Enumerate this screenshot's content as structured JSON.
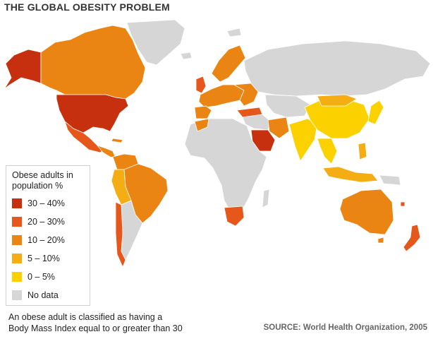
{
  "title": "THE GLOBAL OBESITY PROBLEM",
  "colors": {
    "c30_40": "#c6300f",
    "c20_30": "#e5571b",
    "c10_20": "#ea8413",
    "c5_10": "#f5ad14",
    "c0_5": "#fcd100",
    "nodata": "#d6d6d6",
    "border": "#ffffff"
  },
  "legend": {
    "title_line1": "Obese adults in",
    "title_line2": "population %",
    "items": [
      {
        "label": "30 – 40%",
        "color": "#c6300f"
      },
      {
        "label": "20 – 30%",
        "color": "#e5571b"
      },
      {
        "label": "10 – 20%",
        "color": "#ea8413"
      },
      {
        "label": "5 – 10%",
        "color": "#f5ad14"
      },
      {
        "label": "0 – 5%",
        "color": "#fcd100"
      },
      {
        "label": "No data",
        "color": "#d6d6d6"
      }
    ]
  },
  "footnote": {
    "line1": "An obese adult is classified as having a",
    "line2": "Body Mass Index equal to or greater than 30"
  },
  "source": "SOURCE: World Health Organization, 2005"
}
